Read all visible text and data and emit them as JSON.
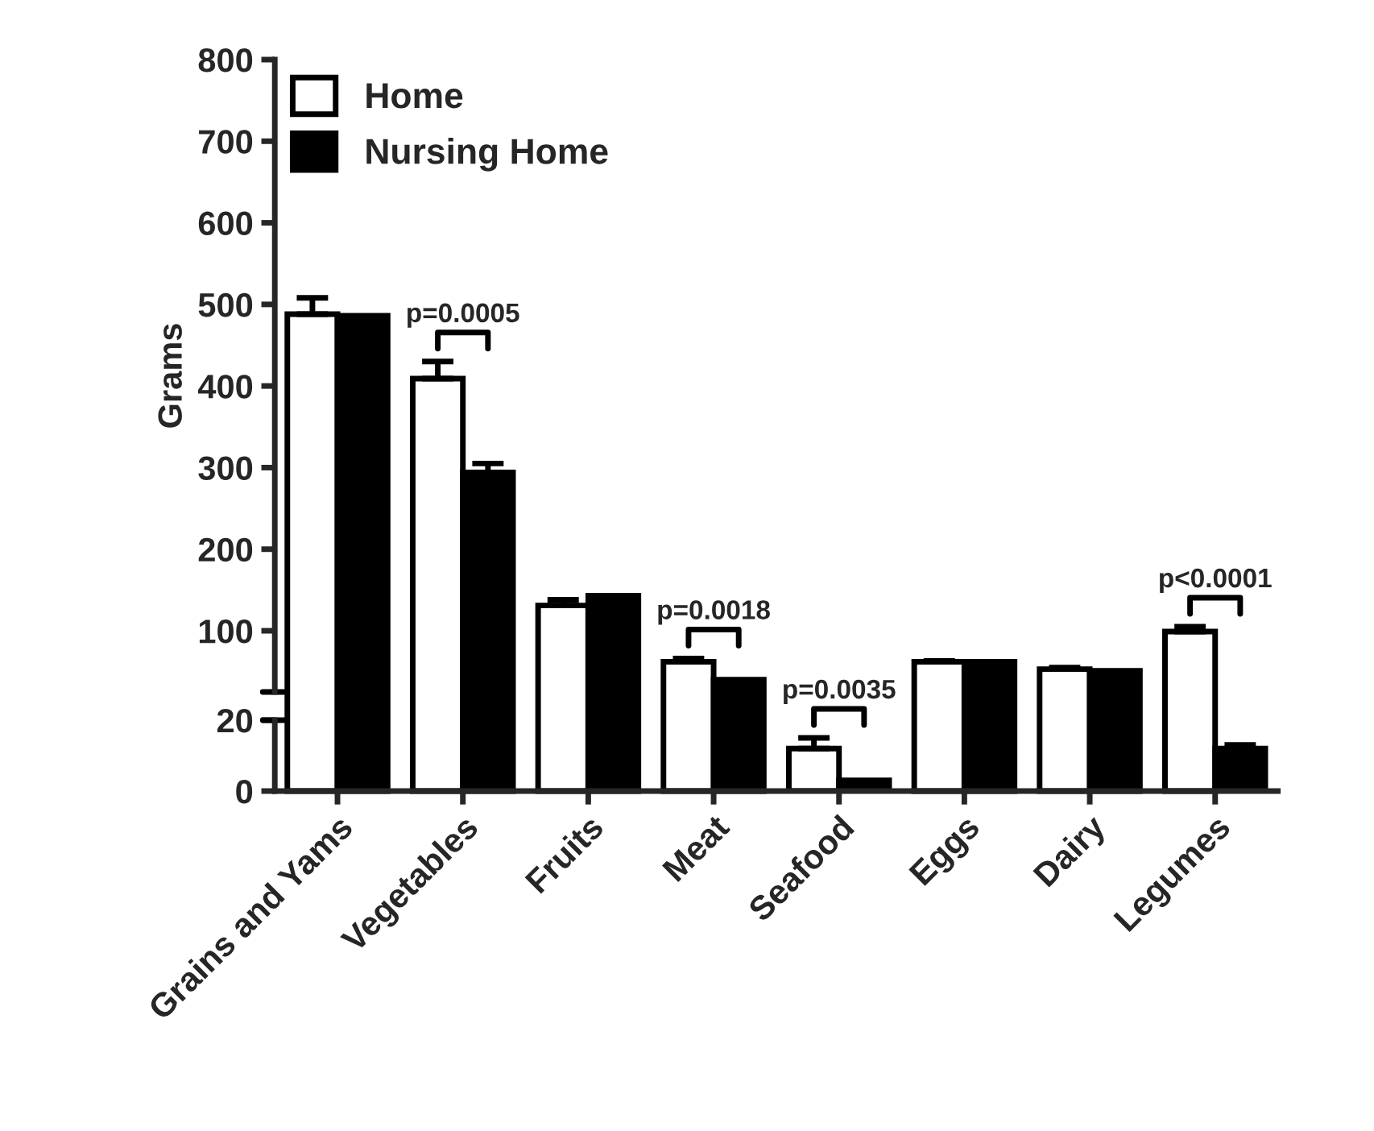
{
  "chart_data": [
    {
      "type": "bar",
      "ylabel": "Grams",
      "categories": [
        "Grains and Yams",
        "Vegetables",
        "Fruits",
        "Meat",
        "Seafood",
        "Eggs",
        "Dairy",
        "Legumes"
      ],
      "series": [
        {
          "name": "Home",
          "color": "#ffffff",
          "values": [
            488,
            409,
            131,
            62,
            null,
            62,
            53,
            99
          ],
          "errors": [
            [
              488,
              508
            ],
            [
              409,
              430
            ],
            [
              131,
              138
            ],
            [
              62,
              66
            ],
            null,
            [
              62,
              63
            ],
            [
              53,
              55
            ],
            [
              99,
              105
            ]
          ]
        },
        {
          "name": "Nursing Home",
          "color": "#000000",
          "values": [
            486,
            294,
            143,
            40,
            null,
            62,
            51,
            null
          ],
          "errors": [
            null,
            [
              294,
              305
            ],
            null,
            null,
            null,
            null,
            null,
            null
          ]
        }
      ],
      "ylim": [
        25,
        800
      ],
      "yticks": [
        100,
        200,
        300,
        400,
        500,
        600,
        700,
        800
      ],
      "tick_labels": "y",
      "annotations": [
        {
          "text": "p=0.0005",
          "x": "Vegetables",
          "y": 409
        },
        {
          "text": "p=0.0018",
          "x": "Meat",
          "y": 62
        },
        {
          "text": "p<0.0001",
          "x": "Legumes",
          "y": 99
        }
      ],
      "legend": "top left"
    },
    {
      "type": "bar",
      "categories": [
        "Grains and Yams",
        "Vegetables",
        "Fruits",
        "Meat",
        "Seafood",
        "Eggs",
        "Dairy",
        "Legumes"
      ],
      "series": [
        {
          "color": "#ffffff",
          "values": [
            null,
            null,
            null,
            null,
            12,
            null,
            null,
            null
          ],
          "errors": [
            null,
            null,
            null,
            null,
            [
              12,
              15
            ],
            null,
            null,
            null
          ]
        },
        {
          "color": "#000000",
          "values": [
            null,
            null,
            null,
            null,
            3,
            null,
            null,
            12
          ],
          "errors": [
            null,
            null,
            null,
            null,
            null,
            null,
            null,
            [
              12,
              13
            ]
          ]
        }
      ],
      "ylim": [
        0,
        20
      ],
      "yticks": [
        0,
        20
      ],
      "annotations": [
        {
          "text": "p=0.0035",
          "x": "Seafood",
          "y": 12
        }
      ]
    }
  ]
}
